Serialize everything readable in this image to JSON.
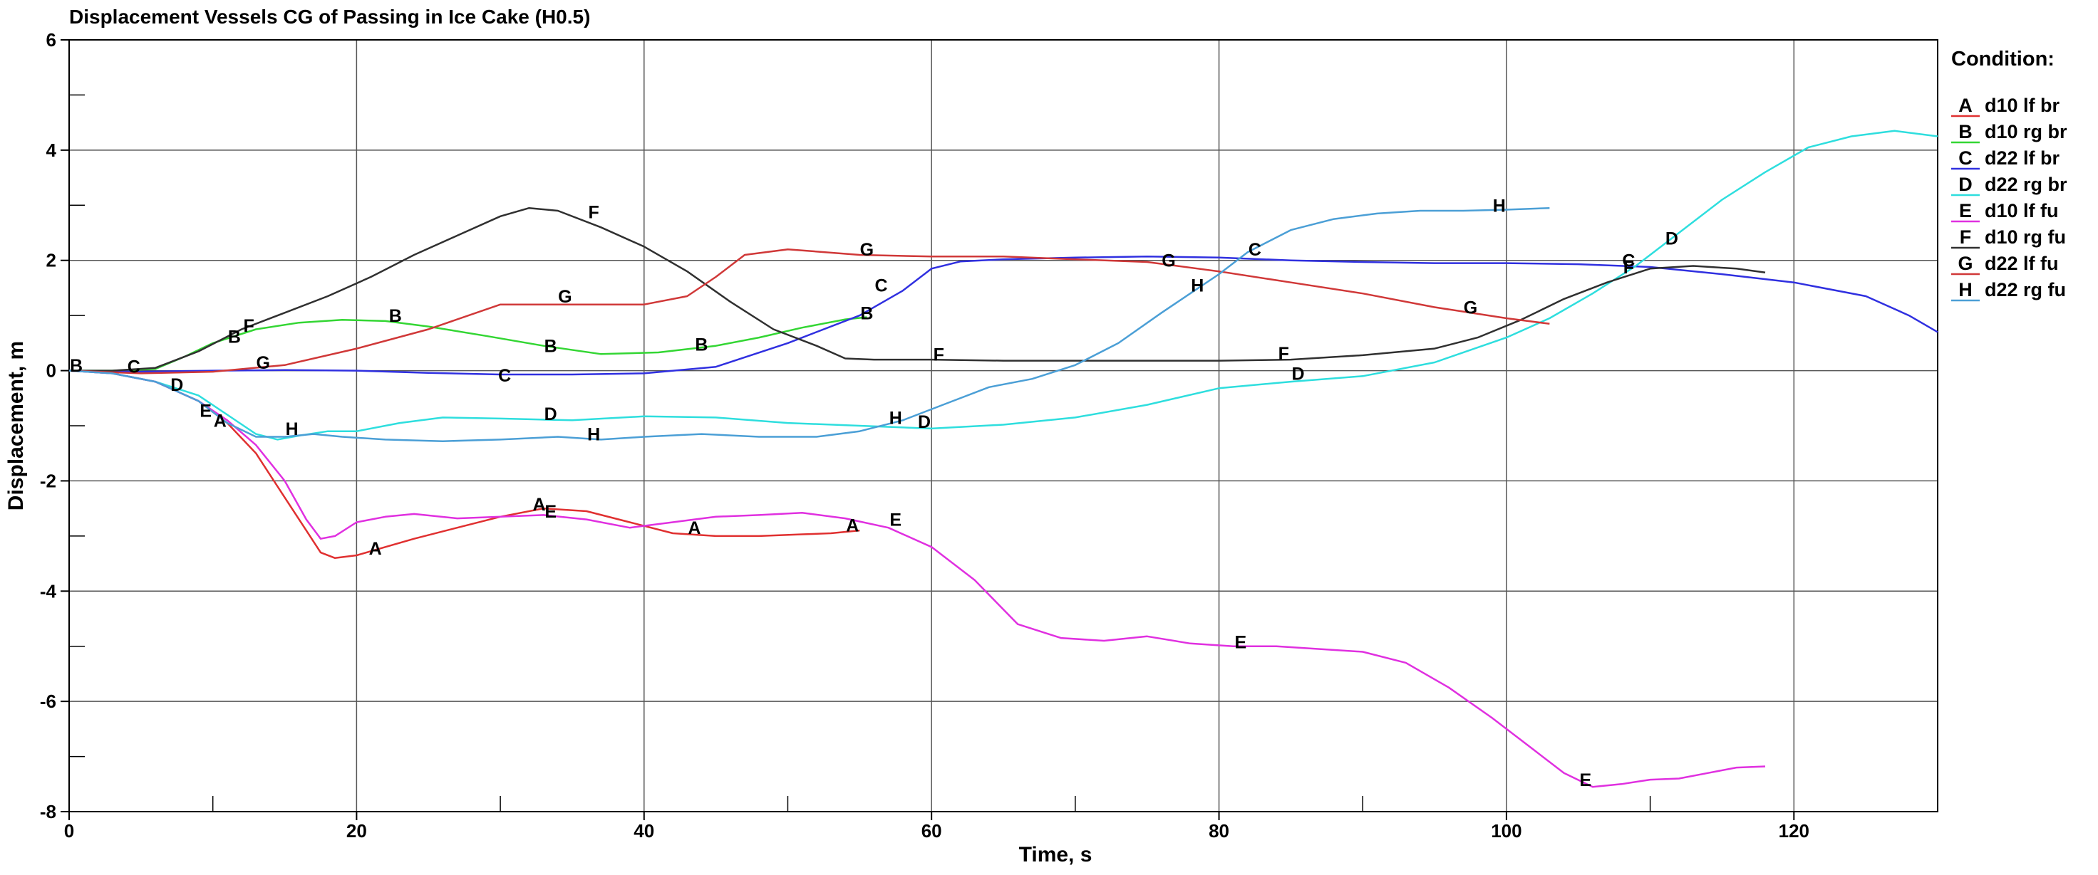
{
  "chart_data": {
    "type": "line",
    "title": "Displacement Vessels CG of Passing in Ice Cake (H0.5)",
    "xlabel": "Time, s",
    "ylabel": "Displacement, m",
    "xlim": [
      0,
      130
    ],
    "ylim": [
      -8,
      6
    ],
    "x_major_ticks": [
      0,
      20,
      40,
      60,
      80,
      100,
      120
    ],
    "x_minor_ticks": [
      10,
      30,
      50,
      70,
      90,
      110
    ],
    "x_tick_labels": [
      "0",
      "20",
      "40",
      "60",
      "80",
      "100",
      "120"
    ],
    "y_major_ticks": [
      -8,
      -6,
      -4,
      -2,
      0,
      2,
      4,
      6
    ],
    "y_minor_ticks": [
      -7,
      -5,
      -3,
      -1,
      1,
      3,
      5
    ],
    "y_tick_labels": [
      "-8",
      "-6",
      "-4",
      "-2",
      "0",
      "2",
      "4",
      "6"
    ],
    "grid": true,
    "legend_title": "Condition:",
    "legend_position": "right",
    "series": [
      {
        "name": "d10 lf br",
        "marker": "A",
        "color": "#e03030",
        "points": [
          [
            0,
            0
          ],
          [
            3,
            -0.05
          ],
          [
            6,
            -0.2
          ],
          [
            9,
            -0.55
          ],
          [
            11,
            -0.95
          ],
          [
            13,
            -1.5
          ],
          [
            15,
            -2.3
          ],
          [
            16.5,
            -2.9
          ],
          [
            17.5,
            -3.3
          ],
          [
            18.5,
            -3.4
          ],
          [
            20,
            -3.35
          ],
          [
            22,
            -3.2
          ],
          [
            24,
            -3.05
          ],
          [
            27,
            -2.85
          ],
          [
            30,
            -2.65
          ],
          [
            33,
            -2.5
          ],
          [
            36,
            -2.55
          ],
          [
            39,
            -2.75
          ],
          [
            42,
            -2.95
          ],
          [
            45,
            -3.0
          ],
          [
            48,
            -3.0
          ],
          [
            51,
            -2.97
          ],
          [
            53,
            -2.95
          ],
          [
            55,
            -2.9
          ]
        ],
        "labels": [
          [
            10.5,
            -0.9
          ],
          [
            21.3,
            -3.22
          ],
          [
            32.7,
            -2.42
          ],
          [
            43.5,
            -2.85
          ],
          [
            54.5,
            -2.8
          ]
        ]
      },
      {
        "name": "d10 rg br",
        "marker": "B",
        "color": "#33d633",
        "points": [
          [
            0,
            0
          ],
          [
            3,
            0.0
          ],
          [
            6,
            0.03
          ],
          [
            8,
            0.25
          ],
          [
            10,
            0.5
          ],
          [
            13,
            0.75
          ],
          [
            16,
            0.87
          ],
          [
            19,
            0.92
          ],
          [
            22,
            0.9
          ],
          [
            25,
            0.8
          ],
          [
            29,
            0.63
          ],
          [
            33,
            0.45
          ],
          [
            37,
            0.3
          ],
          [
            41,
            0.33
          ],
          [
            45,
            0.45
          ],
          [
            48,
            0.6
          ],
          [
            51,
            0.78
          ],
          [
            54,
            0.93
          ],
          [
            55.5,
            0.97
          ]
        ],
        "labels": [
          [
            0.5,
            0.1
          ],
          [
            11.5,
            0.62
          ],
          [
            22.7,
            1.0
          ],
          [
            33.5,
            0.45
          ],
          [
            44,
            0.48
          ],
          [
            55.5,
            1.05
          ]
        ]
      },
      {
        "name": "d22 lf br",
        "marker": "C",
        "color": "#3030e0",
        "points": [
          [
            0,
            0
          ],
          [
            5,
            -0.02
          ],
          [
            10,
            0.0
          ],
          [
            15,
            0.01
          ],
          [
            20,
            0.0
          ],
          [
            25,
            -0.04
          ],
          [
            30,
            -0.07
          ],
          [
            35,
            -0.07
          ],
          [
            40,
            -0.05
          ],
          [
            45,
            0.07
          ],
          [
            50,
            0.5
          ],
          [
            55,
            1.0
          ],
          [
            58,
            1.45
          ],
          [
            60,
            1.85
          ],
          [
            62,
            1.98
          ],
          [
            65,
            2.02
          ],
          [
            70,
            2.05
          ],
          [
            75,
            2.07
          ],
          [
            80,
            2.05
          ],
          [
            85,
            2.0
          ],
          [
            90,
            1.97
          ],
          [
            95,
            1.95
          ],
          [
            100,
            1.95
          ],
          [
            105,
            1.93
          ],
          [
            110,
            1.88
          ],
          [
            115,
            1.75
          ],
          [
            120,
            1.6
          ],
          [
            125,
            1.35
          ],
          [
            128,
            1.0
          ],
          [
            130,
            0.7
          ]
        ],
        "labels": [
          [
            4.5,
            0.08
          ],
          [
            30.3,
            -0.08
          ],
          [
            56.5,
            1.55
          ],
          [
            82.5,
            2.2
          ],
          [
            108.5,
            2.0
          ]
        ]
      },
      {
        "name": "d22 rg br",
        "marker": "D",
        "color": "#2edede",
        "points": [
          [
            0,
            0
          ],
          [
            3,
            -0.05
          ],
          [
            6,
            -0.2
          ],
          [
            9,
            -0.45
          ],
          [
            11,
            -0.8
          ],
          [
            13,
            -1.15
          ],
          [
            14.5,
            -1.25
          ],
          [
            16,
            -1.18
          ],
          [
            18,
            -1.1
          ],
          [
            20,
            -1.1
          ],
          [
            23,
            -0.95
          ],
          [
            26,
            -0.85
          ],
          [
            30,
            -0.87
          ],
          [
            35,
            -0.9
          ],
          [
            40,
            -0.83
          ],
          [
            45,
            -0.85
          ],
          [
            50,
            -0.95
          ],
          [
            55,
            -1.0
          ],
          [
            60,
            -1.05
          ],
          [
            65,
            -0.98
          ],
          [
            70,
            -0.85
          ],
          [
            75,
            -0.62
          ],
          [
            80,
            -0.32
          ],
          [
            85,
            -0.2
          ],
          [
            90,
            -0.1
          ],
          [
            95,
            0.15
          ],
          [
            100,
            0.6
          ],
          [
            103,
            0.95
          ],
          [
            106,
            1.4
          ],
          [
            109,
            1.9
          ],
          [
            112,
            2.5
          ],
          [
            115,
            3.1
          ],
          [
            118,
            3.6
          ],
          [
            121,
            4.05
          ],
          [
            124,
            4.25
          ],
          [
            127,
            4.35
          ],
          [
            130,
            4.25
          ]
        ],
        "labels": [
          [
            7.5,
            -0.25
          ],
          [
            33.5,
            -0.78
          ],
          [
            59.5,
            -0.92
          ],
          [
            85.5,
            -0.05
          ],
          [
            111.5,
            2.4
          ]
        ]
      },
      {
        "name": "d10 lf fu",
        "marker": "E",
        "color": "#e030e0",
        "points": [
          [
            0,
            0
          ],
          [
            3,
            -0.05
          ],
          [
            6,
            -0.2
          ],
          [
            9,
            -0.55
          ],
          [
            11,
            -0.9
          ],
          [
            13,
            -1.35
          ],
          [
            15,
            -2.0
          ],
          [
            16.5,
            -2.7
          ],
          [
            17.5,
            -3.05
          ],
          [
            18.5,
            -3.0
          ],
          [
            20,
            -2.75
          ],
          [
            22,
            -2.65
          ],
          [
            24,
            -2.6
          ],
          [
            27,
            -2.68
          ],
          [
            30,
            -2.65
          ],
          [
            33,
            -2.62
          ],
          [
            36,
            -2.7
          ],
          [
            39,
            -2.85
          ],
          [
            42,
            -2.75
          ],
          [
            45,
            -2.65
          ],
          [
            48,
            -2.62
          ],
          [
            51,
            -2.58
          ],
          [
            54,
            -2.68
          ],
          [
            57,
            -2.85
          ],
          [
            60,
            -3.2
          ],
          [
            63,
            -3.8
          ],
          [
            66,
            -4.6
          ],
          [
            69,
            -4.85
          ],
          [
            72,
            -4.9
          ],
          [
            75,
            -4.82
          ],
          [
            78,
            -4.95
          ],
          [
            81,
            -5.0
          ],
          [
            84,
            -5.0
          ],
          [
            87,
            -5.05
          ],
          [
            90,
            -5.1
          ],
          [
            93,
            -5.3
          ],
          [
            96,
            -5.75
          ],
          [
            99,
            -6.3
          ],
          [
            102,
            -6.9
          ],
          [
            104,
            -7.3
          ],
          [
            106,
            -7.55
          ],
          [
            108,
            -7.5
          ],
          [
            110,
            -7.42
          ],
          [
            112,
            -7.4
          ],
          [
            114,
            -7.3
          ],
          [
            116,
            -7.2
          ],
          [
            118,
            -7.18
          ]
        ],
        "labels": [
          [
            9.5,
            -0.72
          ],
          [
            33.5,
            -2.55
          ],
          [
            57.5,
            -2.7
          ],
          [
            81.5,
            -4.92
          ],
          [
            105.5,
            -7.42
          ]
        ]
      },
      {
        "name": "d10 rg fu",
        "marker": "F",
        "color": "#303030",
        "points": [
          [
            0,
            0
          ],
          [
            3,
            0.0
          ],
          [
            6,
            0.05
          ],
          [
            9,
            0.35
          ],
          [
            12,
            0.75
          ],
          [
            15,
            1.05
          ],
          [
            18,
            1.35
          ],
          [
            21,
            1.7
          ],
          [
            24,
            2.1
          ],
          [
            27,
            2.45
          ],
          [
            30,
            2.8
          ],
          [
            32,
            2.95
          ],
          [
            34,
            2.9
          ],
          [
            37,
            2.6
          ],
          [
            40,
            2.25
          ],
          [
            43,
            1.8
          ],
          [
            46,
            1.25
          ],
          [
            49,
            0.75
          ],
          [
            52,
            0.45
          ],
          [
            54,
            0.22
          ],
          [
            56,
            0.2
          ],
          [
            60,
            0.2
          ],
          [
            65,
            0.18
          ],
          [
            70,
            0.18
          ],
          [
            75,
            0.18
          ],
          [
            80,
            0.18
          ],
          [
            85,
            0.2
          ],
          [
            90,
            0.28
          ],
          [
            95,
            0.4
          ],
          [
            98,
            0.6
          ],
          [
            101,
            0.92
          ],
          [
            104,
            1.3
          ],
          [
            107,
            1.6
          ],
          [
            110,
            1.85
          ],
          [
            113,
            1.9
          ],
          [
            116,
            1.85
          ],
          [
            118,
            1.78
          ]
        ],
        "labels": [
          [
            12.5,
            0.82
          ],
          [
            36.5,
            2.88
          ],
          [
            60.5,
            0.3
          ],
          [
            84.5,
            0.32
          ],
          [
            108.5,
            1.88
          ]
        ]
      },
      {
        "name": "d22 lf fu",
        "marker": "G",
        "color": "#d03838",
        "points": [
          [
            0,
            0
          ],
          [
            5,
            -0.05
          ],
          [
            10,
            -0.02
          ],
          [
            15,
            0.1
          ],
          [
            20,
            0.4
          ],
          [
            25,
            0.75
          ],
          [
            30,
            1.2
          ],
          [
            35,
            1.2
          ],
          [
            40,
            1.2
          ],
          [
            43,
            1.35
          ],
          [
            45,
            1.7
          ],
          [
            47,
            2.1
          ],
          [
            50,
            2.2
          ],
          [
            55,
            2.1
          ],
          [
            60,
            2.07
          ],
          [
            65,
            2.07
          ],
          [
            70,
            2.02
          ],
          [
            75,
            1.97
          ],
          [
            80,
            1.8
          ],
          [
            85,
            1.6
          ],
          [
            90,
            1.4
          ],
          [
            95,
            1.15
          ],
          [
            100,
            0.95
          ],
          [
            103,
            0.85
          ]
        ],
        "labels": [
          [
            13.5,
            0.15
          ],
          [
            34.5,
            1.35
          ],
          [
            55.5,
            2.2
          ],
          [
            76.5,
            2.0
          ],
          [
            97.5,
            1.15
          ]
        ]
      },
      {
        "name": "d22 rg fu",
        "marker": "H",
        "color": "#4b9fd6",
        "points": [
          [
            0,
            0
          ],
          [
            3,
            -0.05
          ],
          [
            6,
            -0.2
          ],
          [
            9,
            -0.55
          ],
          [
            11,
            -0.95
          ],
          [
            13,
            -1.2
          ],
          [
            15,
            -1.2
          ],
          [
            17,
            -1.15
          ],
          [
            19,
            -1.2
          ],
          [
            22,
            -1.25
          ],
          [
            26,
            -1.28
          ],
          [
            30,
            -1.25
          ],
          [
            34,
            -1.2
          ],
          [
            37,
            -1.25
          ],
          [
            40,
            -1.2
          ],
          [
            44,
            -1.15
          ],
          [
            48,
            -1.2
          ],
          [
            52,
            -1.2
          ],
          [
            55,
            -1.1
          ],
          [
            58,
            -0.9
          ],
          [
            61,
            -0.6
          ],
          [
            64,
            -0.3
          ],
          [
            67,
            -0.15
          ],
          [
            70,
            0.1
          ],
          [
            73,
            0.5
          ],
          [
            76,
            1.05
          ],
          [
            78,
            1.4
          ],
          [
            80,
            1.75
          ],
          [
            82,
            2.15
          ],
          [
            85,
            2.55
          ],
          [
            88,
            2.75
          ],
          [
            91,
            2.85
          ],
          [
            94,
            2.9
          ],
          [
            97,
            2.9
          ],
          [
            100,
            2.92
          ],
          [
            103,
            2.95
          ]
        ],
        "labels": [
          [
            15.5,
            -1.05
          ],
          [
            36.5,
            -1.15
          ],
          [
            57.5,
            -0.85
          ],
          [
            78.5,
            1.55
          ],
          [
            99.5,
            3.0
          ]
        ]
      }
    ]
  }
}
